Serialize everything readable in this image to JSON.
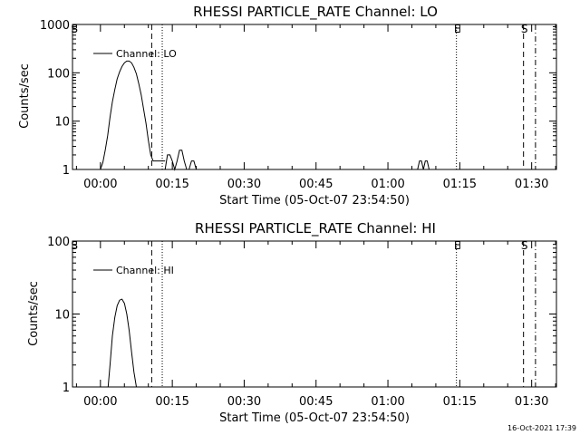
{
  "footer": {
    "timestamp": "16-Oct-2021 17:39"
  },
  "chart_data": [
    {
      "type": "line",
      "title": "RHESSI PARTICLE_RATE Channel: LO",
      "xlabel": "Start Time (05-Oct-07 23:54:50)",
      "ylabel": "Counts/sec",
      "y_scale": "log",
      "ylim": [
        1,
        1000
      ],
      "xlim_minutes": [
        -5.83,
        95.17
      ],
      "x_ticks": [
        "00:00",
        "00:15",
        "00:30",
        "00:45",
        "01:00",
        "01:15",
        "01:30"
      ],
      "y_ticks": [
        "1",
        "10",
        "100",
        "1000"
      ],
      "legend": {
        "label": "Channel: LO",
        "placement": "top-left"
      },
      "markers": [
        {
          "label": "S",
          "x_minutes": -5.6,
          "style": "none"
        },
        {
          "label": "",
          "x_minutes": 10.7,
          "style": "dashed"
        },
        {
          "label": "",
          "x_minutes": 12.9,
          "style": "dotted"
        },
        {
          "label": "E",
          "x_minutes": 74.3,
          "style": "dotted"
        },
        {
          "label": "S",
          "x_minutes": 88.3,
          "style": "dashed"
        },
        {
          "label": "",
          "x_minutes": 90.8,
          "style": "dashdot"
        }
      ],
      "series": [
        {
          "name": "Channel: LO",
          "segments": [
            {
              "x": [
                0,
                0.5,
                1.0,
                1.5,
                2.0,
                2.5,
                3.0,
                3.5,
                4.0,
                4.5,
                5.0,
                5.5,
                6.0,
                6.5,
                7.0,
                7.5,
                8.0,
                8.5,
                9.0,
                9.5,
                10.0,
                10.5,
                11.0,
                11.5,
                12.0,
                12.5,
                13.0,
                13.5
              ],
              "y": [
                1,
                1.4,
                2.5,
                5,
                12,
                25,
                45,
                75,
                105,
                135,
                160,
                175,
                175,
                160,
                130,
                95,
                60,
                35,
                18,
                9,
                4,
                2,
                1.5,
                1.5,
                1.5,
                1.5,
                1.5,
                1.5
              ]
            },
            {
              "x": [
                13.5,
                14.0,
                14.5,
                15.0,
                15.5,
                16.0,
                16.5,
                17.0,
                17.5,
                18.0,
                18.5,
                19.0,
                19.5,
                20.0
              ],
              "y": [
                1,
                2,
                2,
                1.5,
                1,
                1.5,
                2.5,
                2.5,
                1.5,
                1,
                1,
                1.5,
                1.5,
                1
              ]
            },
            {
              "x": [
                66.2,
                66.6,
                67.0,
                67.4,
                67.8,
                68.2,
                68.6
              ],
              "y": [
                1,
                1.5,
                1.5,
                1,
                1.5,
                1.5,
                1
              ]
            }
          ]
        }
      ]
    },
    {
      "type": "line",
      "title": "RHESSI PARTICLE_RATE Channel: HI",
      "xlabel": "Start Time (05-Oct-07 23:54:50)",
      "ylabel": "Counts/sec",
      "y_scale": "log",
      "ylim": [
        1,
        100
      ],
      "xlim_minutes": [
        -5.83,
        95.17
      ],
      "x_ticks": [
        "00:00",
        "00:15",
        "00:30",
        "00:45",
        "01:00",
        "01:15",
        "01:30"
      ],
      "y_ticks": [
        "1",
        "10",
        "100"
      ],
      "legend": {
        "label": "Channel: HI",
        "placement": "top-left"
      },
      "markers": [
        {
          "label": "S",
          "x_minutes": -5.6,
          "style": "none"
        },
        {
          "label": "",
          "x_minutes": 10.7,
          "style": "dashed"
        },
        {
          "label": "",
          "x_minutes": 12.9,
          "style": "dotted"
        },
        {
          "label": "E",
          "x_minutes": 74.3,
          "style": "dotted"
        },
        {
          "label": "S",
          "x_minutes": 88.3,
          "style": "dashed"
        },
        {
          "label": "",
          "x_minutes": 90.8,
          "style": "dashdot"
        }
      ],
      "series": [
        {
          "name": "Channel: HI",
          "segments": [
            {
              "x": [
                1.6,
                2.0,
                2.5,
                3.0,
                3.5,
                4.0,
                4.5,
                5.0,
                5.5,
                6.0,
                6.5,
                7.0,
                7.5
              ],
              "y": [
                1,
                2,
                5,
                9,
                13,
                15.5,
                16,
                14,
                10,
                6,
                3,
                1.6,
                1
              ]
            }
          ]
        }
      ]
    }
  ]
}
